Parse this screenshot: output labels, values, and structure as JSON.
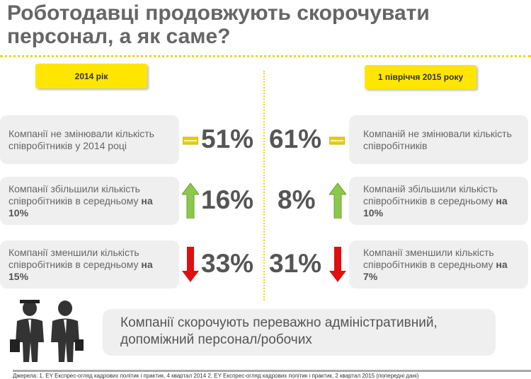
{
  "title": "Роботодавці продовжують скорочувати персонал, а як саме?",
  "left": {
    "label": "2014 рік",
    "rows": [
      {
        "text": "Компанії не змінювали кількість співробітників у 2014 році",
        "bold": "",
        "value": "51%",
        "icon": "equals-icon",
        "color": "#e8d000"
      },
      {
        "text": "Компанії збільшили кількість співробітників в середньому ",
        "bold": "на 10%",
        "value": "16%",
        "icon": "arrow-up-icon",
        "color": "#8cc84b"
      },
      {
        "text": "Компанії зменшили кількість співробітників в середньому ",
        "bold": "на 15%",
        "value": "33%",
        "icon": "arrow-down-icon",
        "color": "#e01010"
      }
    ]
  },
  "right": {
    "label": "1 півріччя 2015 року",
    "rows": [
      {
        "text": "Компаній не змінювали кількість співробітників",
        "bold": "",
        "value": "61%",
        "icon": "equals-icon",
        "color": "#e8d000"
      },
      {
        "text": "Компаній збільшили кількість співробітників в середньому ",
        "bold": "на 10%",
        "value": "8%",
        "icon": "arrow-up-icon",
        "color": "#8cc84b"
      },
      {
        "text": "Компанії зменшили кількість співробітників в середньому ",
        "bold": "на 7%",
        "value": "31%",
        "icon": "arrow-down-icon",
        "color": "#e01010"
      }
    ]
  },
  "conclusion": "Компанії скорочують переважно адміністративний, допоміжний персонал/робочих",
  "source": "Джерела: 1. EY Експрес-огляд кадрових політик і практик, 4 квартал 2014 2. EY Експрес-огляд кадрових політик і практик, 2 квартал 2015 (попередні дані)"
}
